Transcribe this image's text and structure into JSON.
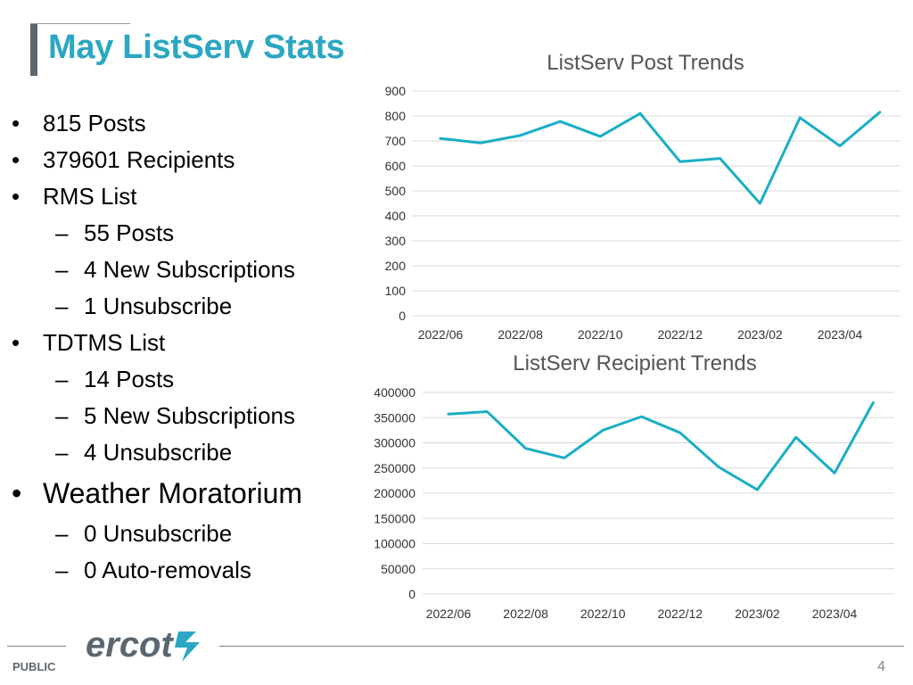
{
  "slide": {
    "title": "May ListServ Stats",
    "footer_label": "PUBLIC",
    "page_number": "4",
    "logo_text": "ercot",
    "accent_color": "#2ba7c3",
    "series_color": "#1aaec5",
    "title_bar_color": "#5b6770"
  },
  "bullets": [
    {
      "level": 1,
      "text": "815 Posts"
    },
    {
      "level": 1,
      "text": "379601 Recipients"
    },
    {
      "level": 1,
      "text": "RMS List"
    },
    {
      "level": 2,
      "text": "55 Posts"
    },
    {
      "level": 2,
      "text": "4 New Subscriptions"
    },
    {
      "level": 2,
      "text": "1 Unsubscribe"
    },
    {
      "level": 1,
      "text": "TDTMS List"
    },
    {
      "level": 2,
      "text": "14 Posts"
    },
    {
      "level": 2,
      "text": "5 New Subscriptions"
    },
    {
      "level": 2,
      "text": "4 Unsubscribe"
    },
    {
      "level": 1,
      "text": "Weather Moratorium",
      "size": "large"
    },
    {
      "level": 2,
      "text": "0 Unsubscribe"
    },
    {
      "level": 2,
      "text": "0 Auto-removals"
    }
  ],
  "chart_data": [
    {
      "type": "line",
      "title": "ListServ Post Trends",
      "x": [
        "2022/06",
        "2022/07",
        "2022/08",
        "2022/09",
        "2022/10",
        "2022/11",
        "2022/12",
        "2023/01",
        "2023/02",
        "2023/03",
        "2023/04",
        "2023/05"
      ],
      "x_tick_labels": [
        "2022/06",
        "2022/08",
        "2022/10",
        "2022/12",
        "2023/02",
        "2023/04"
      ],
      "y_ticks": [
        "0",
        "100",
        "200",
        "300",
        "400",
        "500",
        "600",
        "700",
        "800",
        "900"
      ],
      "ylim": [
        0,
        900
      ],
      "series": [
        {
          "values": [
            710,
            692,
            722,
            778,
            718,
            810,
            617,
            630,
            450,
            793,
            680,
            815
          ]
        }
      ],
      "grid": true,
      "legend": "none"
    },
    {
      "type": "line",
      "title": "ListServ Recipient Trends",
      "x": [
        "2022/06",
        "2022/07",
        "2022/08",
        "2022/09",
        "2022/10",
        "2022/11",
        "2022/12",
        "2023/01",
        "2023/02",
        "2023/03",
        "2023/04",
        "2023/05"
      ],
      "x_tick_labels": [
        "2022/06",
        "2022/08",
        "2022/10",
        "2022/12",
        "2023/02",
        "2023/04"
      ],
      "y_ticks": [
        "0",
        "50000",
        "100000",
        "150000",
        "200000",
        "250000",
        "300000",
        "350000",
        "400000"
      ],
      "ylim": [
        0,
        400000
      ],
      "series": [
        {
          "values": [
            357000,
            362000,
            289000,
            270000,
            325000,
            352000,
            320000,
            252000,
            207000,
            311000,
            240000,
            379601
          ]
        }
      ],
      "grid": true,
      "legend": "none"
    }
  ]
}
